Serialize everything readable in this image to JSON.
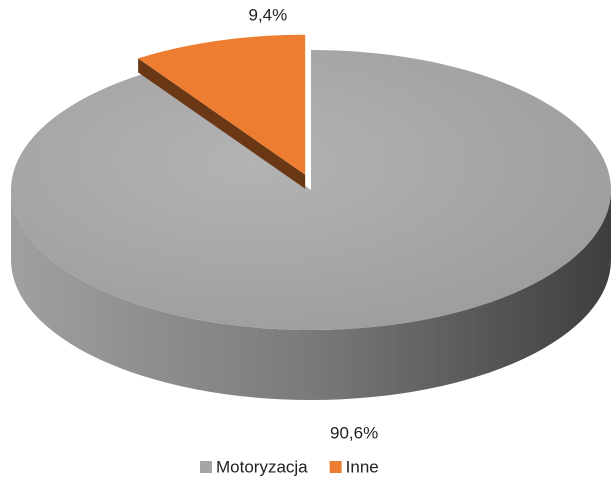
{
  "chart_data": {
    "type": "pie3d",
    "categories": [
      "Motoryzacja",
      "Inne"
    ],
    "values": [
      90.6,
      9.4
    ],
    "value_labels": [
      "90,6%",
      "9,4%"
    ],
    "colors": [
      "#a5a5a5",
      "#ed7d31"
    ],
    "legend": "bottom"
  }
}
